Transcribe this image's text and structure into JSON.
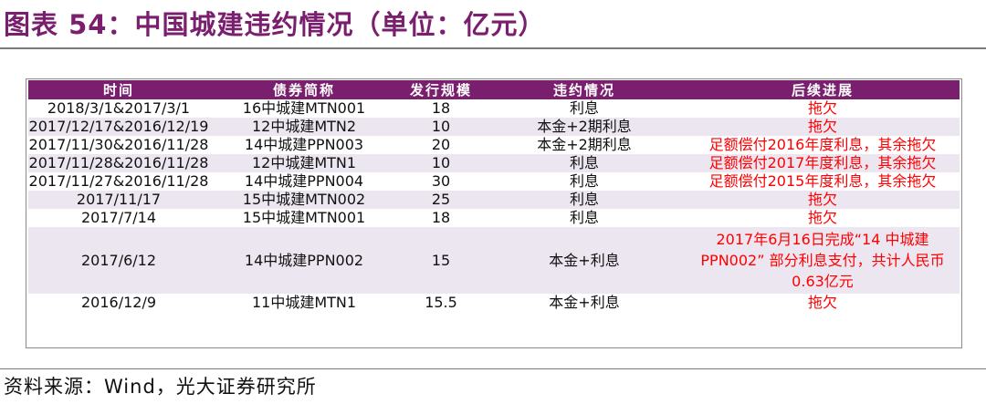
{
  "title": "图表 54：中国城建违约情况（单位：亿元）",
  "headers": [
    "时间",
    "债券简称",
    "发行规模",
    "违约情况",
    "后续进展"
  ],
  "rows": [
    {
      "time": "2018/3/1&2017/3/1",
      "name": "16中城建MTN001",
      "size": "18",
      "status": "利息",
      "progress": "拖欠"
    },
    {
      "time": "2017/12/17&2016/12/19",
      "name": "12中城建MTN2",
      "size": "10",
      "status": "本金+2期利息",
      "progress": "拖欠"
    },
    {
      "time": "2017/11/30&2016/11/28",
      "name": "14中城建PPN003",
      "size": "20",
      "status": "本金+2期利息",
      "progress": "足额偿付2016年度利息，其余拖欠"
    },
    {
      "time": "2017/11/28&2016/11/28",
      "name": "12中城建MTN1",
      "size": "10",
      "status": "利息",
      "progress": "足额偿付2017年度利息，其余拖欠"
    },
    {
      "time": "2017/11/27&2016/11/28",
      "name": "14中城建PPN004",
      "size": "30",
      "status": "利息",
      "progress": "足额偿付2015年度利息，其余拖欠"
    },
    {
      "time": "2017/11/17",
      "name": "15中城建MTN002",
      "size": "25",
      "status": "利息",
      "progress": "拖欠"
    },
    {
      "time": "2017/7/14",
      "name": "15中城建MTN001",
      "size": "18",
      "status": "利息",
      "progress": "拖欠"
    },
    {
      "time": "2017/6/12",
      "name": "14中城建PPN002",
      "size": "15",
      "status": "本金+利息",
      "progress": "2017年6月16日完成“14 中城建 PPN002” 部分利息支付，共计人民币0.63亿元"
    },
    {
      "time": "2016/12/9",
      "name": "11中城建MTN1",
      "size": "15.5",
      "status": "本金+利息",
      "progress": "拖欠"
    }
  ],
  "source": "资料来源：Wind，光大证券研究所",
  "colors": {
    "header_bg": "#7a1f6e",
    "stripe": "#ece6f0",
    "progress_text": "#ff0000"
  }
}
